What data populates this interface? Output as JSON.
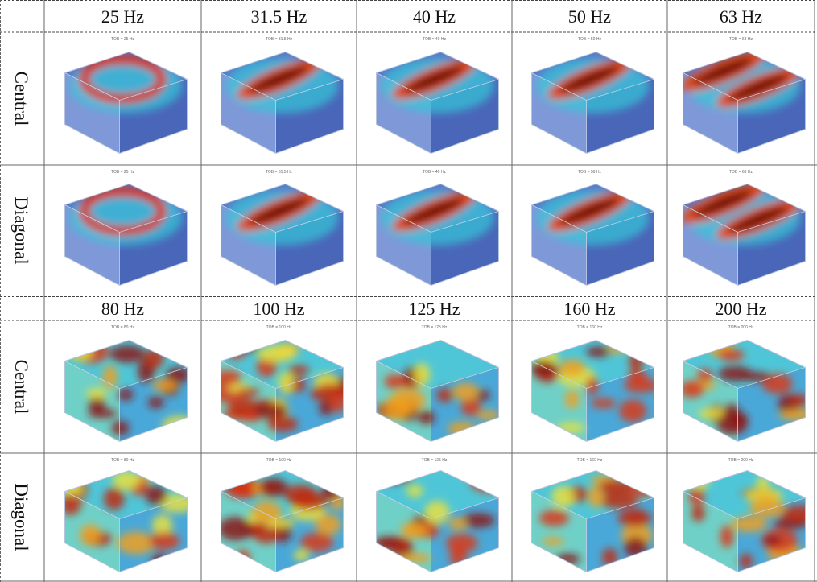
{
  "blocks": [
    {
      "frequencies": [
        "25 Hz",
        "31.5 Hz",
        "40 Hz",
        "50 Hz",
        "63 Hz"
      ],
      "rows": [
        {
          "label": "Central",
          "plot_titles": [
            "TOB = 25 Hz",
            "TOB = 31.5 Hz",
            "TOB = 40 Hz",
            "TOB = 50 Hz",
            "TOB = 63 Hz"
          ]
        },
        {
          "label": "Diagonal",
          "plot_titles": [
            "TOB = 25 Hz",
            "TOB = 31.5 Hz",
            "TOB = 40 Hz",
            "TOB = 50 Hz",
            "TOB = 63 Hz"
          ]
        }
      ]
    },
    {
      "frequencies": [
        "80 Hz",
        "100 Hz",
        "125 Hz",
        "160 Hz",
        "200 Hz"
      ],
      "rows": [
        {
          "label": "Central",
          "plot_titles": [
            "TOB = 80 Hz",
            "TOB = 100 Hz",
            "TOB = 125 Hz",
            "TOB = 160 Hz",
            "TOB = 200 Hz"
          ]
        },
        {
          "label": "Diagonal",
          "plot_titles": [
            "TOB = 80 Hz",
            "TOB = 100 Hz",
            "TOB = 125 Hz",
            "TOB = 160 Hz",
            "TOB = 200 Hz"
          ]
        }
      ]
    }
  ]
}
